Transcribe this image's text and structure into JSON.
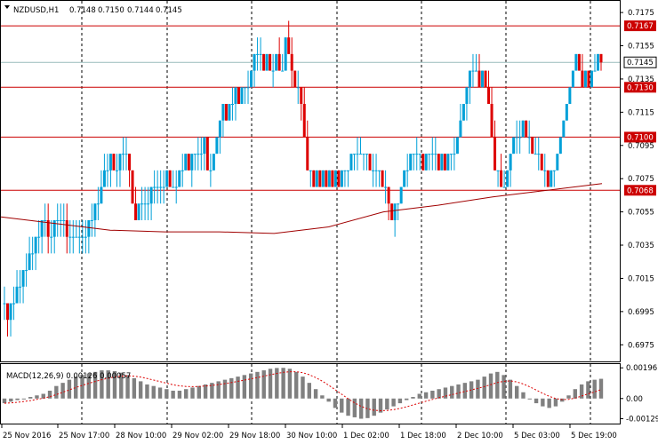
{
  "chart_data": {
    "type": "candlestick",
    "symbol_header": "NZDUSD,H1",
    "ohlc_header": [
      "0.7148",
      "0.7150",
      "0.7144",
      "0.7145"
    ],
    "price_axis": {
      "range": [
        0.6965,
        0.7182
      ],
      "ticks": [
        "0.7175",
        "0.7155",
        "0.7135",
        "0.7115",
        "0.7095",
        "0.7075",
        "0.7055",
        "0.7035",
        "0.7015",
        "0.6995",
        "0.6975"
      ]
    },
    "horizontal_levels": [
      {
        "label": "0.7167",
        "value": 0.7167,
        "color": "#cc0000"
      },
      {
        "label": "0.7130",
        "value": 0.713,
        "color": "#cc0000"
      },
      {
        "label": "0.7100",
        "value": 0.71,
        "color": "#cc0000"
      },
      {
        "label": "0.7068",
        "value": 0.7068,
        "color": "#cc0000"
      }
    ],
    "current_price": {
      "label": "0.7145",
      "value": 0.7145
    },
    "time_labels": [
      "25 Nov 2016",
      "25 Nov 17:00",
      "28 Nov 10:00",
      "29 Nov 02:00",
      "29 Nov 18:00",
      "30 Nov 10:00",
      "1 Dec 02:00",
      "1 Dec 18:00",
      "2 Dec 10:00",
      "5 Dec 03:00",
      "5 Dec 19:00"
    ],
    "candles": [
      [
        0.7,
        0.701,
        0.699,
        0.7
      ],
      [
        0.7,
        0.7,
        0.698,
        0.699
      ],
      [
        0.699,
        0.7,
        0.698,
        0.7
      ],
      [
        0.7,
        0.701,
        0.699,
        0.7
      ],
      [
        0.7,
        0.702,
        0.7,
        0.701
      ],
      [
        0.701,
        0.702,
        0.7,
        0.701
      ],
      [
        0.701,
        0.702,
        0.7,
        0.702
      ],
      [
        0.702,
        0.703,
        0.701,
        0.702
      ],
      [
        0.702,
        0.704,
        0.702,
        0.703
      ],
      [
        0.703,
        0.704,
        0.702,
        0.703
      ],
      [
        0.703,
        0.704,
        0.702,
        0.704
      ],
      [
        0.704,
        0.705,
        0.703,
        0.704
      ],
      [
        0.704,
        0.705,
        0.703,
        0.705
      ],
      [
        0.705,
        0.706,
        0.704,
        0.705
      ],
      [
        0.705,
        0.706,
        0.703,
        0.704
      ],
      [
        0.704,
        0.705,
        0.703,
        0.704
      ],
      [
        0.704,
        0.705,
        0.703,
        0.705
      ],
      [
        0.705,
        0.706,
        0.704,
        0.705
      ],
      [
        0.705,
        0.706,
        0.704,
        0.705
      ],
      [
        0.705,
        0.706,
        0.704,
        0.705
      ],
      [
        0.705,
        0.706,
        0.703,
        0.704
      ],
      [
        0.704,
        0.705,
        0.703,
        0.704
      ],
      [
        0.704,
        0.705,
        0.703,
        0.704
      ],
      [
        0.704,
        0.705,
        0.704,
        0.704
      ],
      [
        0.704,
        0.705,
        0.703,
        0.704
      ],
      [
        0.704,
        0.705,
        0.703,
        0.704
      ],
      [
        0.704,
        0.705,
        0.703,
        0.704
      ],
      [
        0.704,
        0.705,
        0.703,
        0.705
      ],
      [
        0.705,
        0.706,
        0.704,
        0.705
      ],
      [
        0.705,
        0.706,
        0.704,
        0.706
      ],
      [
        0.706,
        0.707,
        0.705,
        0.706
      ],
      [
        0.706,
        0.708,
        0.706,
        0.707
      ],
      [
        0.707,
        0.709,
        0.707,
        0.708
      ],
      [
        0.708,
        0.709,
        0.707,
        0.708
      ],
      [
        0.708,
        0.709,
        0.707,
        0.709
      ],
      [
        0.709,
        0.709,
        0.708,
        0.708
      ],
      [
        0.708,
        0.709,
        0.707,
        0.708
      ],
      [
        0.708,
        0.709,
        0.707,
        0.709
      ],
      [
        0.709,
        0.71,
        0.708,
        0.709
      ],
      [
        0.709,
        0.71,
        0.708,
        0.709
      ],
      [
        0.709,
        0.709,
        0.707,
        0.708
      ],
      [
        0.708,
        0.708,
        0.706,
        0.706
      ],
      [
        0.706,
        0.707,
        0.705,
        0.705
      ],
      [
        0.705,
        0.706,
        0.705,
        0.706
      ],
      [
        0.706,
        0.707,
        0.705,
        0.706
      ],
      [
        0.706,
        0.707,
        0.705,
        0.706
      ],
      [
        0.706,
        0.707,
        0.705,
        0.706
      ],
      [
        0.706,
        0.707,
        0.705,
        0.707
      ],
      [
        0.707,
        0.708,
        0.706,
        0.707
      ],
      [
        0.707,
        0.708,
        0.706,
        0.707
      ],
      [
        0.707,
        0.708,
        0.706,
        0.707
      ],
      [
        0.707,
        0.708,
        0.706,
        0.707
      ],
      [
        0.707,
        0.708,
        0.707,
        0.708
      ],
      [
        0.708,
        0.708,
        0.707,
        0.707
      ],
      [
        0.707,
        0.708,
        0.707,
        0.707
      ],
      [
        0.707,
        0.708,
        0.706,
        0.707
      ],
      [
        0.707,
        0.708,
        0.707,
        0.708
      ],
      [
        0.708,
        0.709,
        0.707,
        0.708
      ],
      [
        0.708,
        0.709,
        0.708,
        0.709
      ],
      [
        0.709,
        0.709,
        0.708,
        0.708
      ],
      [
        0.708,
        0.709,
        0.707,
        0.709
      ],
      [
        0.709,
        0.709,
        0.708,
        0.709
      ],
      [
        0.709,
        0.71,
        0.708,
        0.709
      ],
      [
        0.709,
        0.71,
        0.708,
        0.709
      ],
      [
        0.709,
        0.71,
        0.708,
        0.71
      ],
      [
        0.71,
        0.71,
        0.708,
        0.708
      ],
      [
        0.708,
        0.709,
        0.707,
        0.708
      ],
      [
        0.708,
        0.709,
        0.708,
        0.709
      ],
      [
        0.709,
        0.71,
        0.709,
        0.71
      ],
      [
        0.71,
        0.711,
        0.709,
        0.711
      ],
      [
        0.711,
        0.712,
        0.71,
        0.712
      ],
      [
        0.712,
        0.712,
        0.711,
        0.711
      ],
      [
        0.711,
        0.712,
        0.711,
        0.712
      ],
      [
        0.712,
        0.713,
        0.711,
        0.712
      ],
      [
        0.712,
        0.713,
        0.711,
        0.713
      ],
      [
        0.713,
        0.713,
        0.712,
        0.712
      ],
      [
        0.712,
        0.713,
        0.712,
        0.713
      ],
      [
        0.713,
        0.713,
        0.712,
        0.713
      ],
      [
        0.713,
        0.714,
        0.712,
        0.713
      ],
      [
        0.713,
        0.714,
        0.713,
        0.714
      ],
      [
        0.714,
        0.715,
        0.713,
        0.715
      ],
      [
        0.715,
        0.716,
        0.714,
        0.715
      ],
      [
        0.715,
        0.716,
        0.714,
        0.715
      ],
      [
        0.715,
        0.715,
        0.714,
        0.714
      ],
      [
        0.714,
        0.715,
        0.714,
        0.715
      ],
      [
        0.715,
        0.715,
        0.714,
        0.714
      ],
      [
        0.714,
        0.715,
        0.713,
        0.714
      ],
      [
        0.714,
        0.715,
        0.714,
        0.715
      ],
      [
        0.715,
        0.716,
        0.714,
        0.714
      ],
      [
        0.714,
        0.715,
        0.714,
        0.714
      ],
      [
        0.714,
        0.716,
        0.714,
        0.716
      ],
      [
        0.716,
        0.717,
        0.715,
        0.715
      ],
      [
        0.715,
        0.716,
        0.713,
        0.714
      ],
      [
        0.714,
        0.714,
        0.713,
        0.713
      ],
      [
        0.713,
        0.714,
        0.712,
        0.713
      ],
      [
        0.713,
        0.713,
        0.711,
        0.712
      ],
      [
        0.712,
        0.713,
        0.71,
        0.71
      ],
      [
        0.71,
        0.711,
        0.708,
        0.708
      ],
      [
        0.708,
        0.708,
        0.707,
        0.708
      ],
      [
        0.708,
        0.708,
        0.707,
        0.707
      ],
      [
        0.707,
        0.708,
        0.707,
        0.708
      ],
      [
        0.708,
        0.708,
        0.707,
        0.707
      ],
      [
        0.707,
        0.708,
        0.707,
        0.708
      ],
      [
        0.708,
        0.708,
        0.707,
        0.707
      ],
      [
        0.707,
        0.708,
        0.707,
        0.708
      ],
      [
        0.708,
        0.708,
        0.707,
        0.707
      ],
      [
        0.707,
        0.708,
        0.707,
        0.708
      ],
      [
        0.708,
        0.708,
        0.707,
        0.707
      ],
      [
        0.707,
        0.708,
        0.707,
        0.708
      ],
      [
        0.708,
        0.708,
        0.707,
        0.708
      ],
      [
        0.708,
        0.708,
        0.707,
        0.708
      ],
      [
        0.708,
        0.709,
        0.708,
        0.709
      ],
      [
        0.709,
        0.709,
        0.708,
        0.709
      ],
      [
        0.709,
        0.71,
        0.708,
        0.709
      ],
      [
        0.709,
        0.71,
        0.709,
        0.709
      ],
      [
        0.709,
        0.709,
        0.708,
        0.709
      ],
      [
        0.709,
        0.709,
        0.708,
        0.709
      ],
      [
        0.709,
        0.709,
        0.708,
        0.708
      ],
      [
        0.708,
        0.709,
        0.707,
        0.708
      ],
      [
        0.708,
        0.709,
        0.707,
        0.708
      ],
      [
        0.708,
        0.708,
        0.707,
        0.708
      ],
      [
        0.708,
        0.708,
        0.707,
        0.707
      ],
      [
        0.707,
        0.708,
        0.706,
        0.707
      ],
      [
        0.707,
        0.707,
        0.705,
        0.706
      ],
      [
        0.706,
        0.706,
        0.705,
        0.705
      ],
      [
        0.705,
        0.706,
        0.704,
        0.706
      ],
      [
        0.706,
        0.706,
        0.705,
        0.706
      ],
      [
        0.706,
        0.707,
        0.706,
        0.707
      ],
      [
        0.707,
        0.708,
        0.707,
        0.708
      ],
      [
        0.708,
        0.709,
        0.707,
        0.708
      ],
      [
        0.708,
        0.709,
        0.708,
        0.709
      ],
      [
        0.709,
        0.709,
        0.708,
        0.709
      ],
      [
        0.709,
        0.71,
        0.708,
        0.709
      ],
      [
        0.709,
        0.709,
        0.708,
        0.709
      ],
      [
        0.709,
        0.709,
        0.708,
        0.708
      ],
      [
        0.708,
        0.709,
        0.708,
        0.709
      ],
      [
        0.709,
        0.709,
        0.708,
        0.709
      ],
      [
        0.709,
        0.71,
        0.708,
        0.709
      ],
      [
        0.709,
        0.71,
        0.708,
        0.709
      ],
      [
        0.709,
        0.709,
        0.708,
        0.708
      ],
      [
        0.708,
        0.709,
        0.708,
        0.709
      ],
      [
        0.709,
        0.709,
        0.708,
        0.708
      ],
      [
        0.708,
        0.709,
        0.708,
        0.709
      ],
      [
        0.709,
        0.709,
        0.708,
        0.709
      ],
      [
        0.709,
        0.71,
        0.708,
        0.709
      ],
      [
        0.709,
        0.71,
        0.709,
        0.71
      ],
      [
        0.71,
        0.712,
        0.71,
        0.711
      ],
      [
        0.711,
        0.712,
        0.711,
        0.712
      ],
      [
        0.712,
        0.713,
        0.711,
        0.713
      ],
      [
        0.713,
        0.714,
        0.712,
        0.714
      ],
      [
        0.714,
        0.715,
        0.713,
        0.714
      ],
      [
        0.714,
        0.715,
        0.714,
        0.714
      ],
      [
        0.714,
        0.715,
        0.713,
        0.713
      ],
      [
        0.713,
        0.714,
        0.713,
        0.714
      ],
      [
        0.714,
        0.714,
        0.713,
        0.713
      ],
      [
        0.713,
        0.714,
        0.712,
        0.712
      ],
      [
        0.712,
        0.713,
        0.71,
        0.71
      ],
      [
        0.71,
        0.711,
        0.708,
        0.708
      ],
      [
        0.708,
        0.708,
        0.707,
        0.708
      ],
      [
        0.708,
        0.709,
        0.707,
        0.707
      ],
      [
        0.707,
        0.708,
        0.707,
        0.707
      ],
      [
        0.707,
        0.708,
        0.707,
        0.708
      ],
      [
        0.708,
        0.709,
        0.707,
        0.709
      ],
      [
        0.709,
        0.71,
        0.709,
        0.71
      ],
      [
        0.71,
        0.711,
        0.709,
        0.71
      ],
      [
        0.71,
        0.711,
        0.709,
        0.71
      ],
      [
        0.71,
        0.711,
        0.71,
        0.711
      ],
      [
        0.711,
        0.711,
        0.71,
        0.71
      ],
      [
        0.71,
        0.711,
        0.709,
        0.71
      ],
      [
        0.71,
        0.71,
        0.709,
        0.709
      ],
      [
        0.709,
        0.71,
        0.709,
        0.709
      ],
      [
        0.709,
        0.71,
        0.708,
        0.709
      ],
      [
        0.709,
        0.709,
        0.708,
        0.708
      ],
      [
        0.708,
        0.709,
        0.707,
        0.708
      ],
      [
        0.708,
        0.708,
        0.707,
        0.707
      ],
      [
        0.707,
        0.708,
        0.707,
        0.708
      ],
      [
        0.708,
        0.708,
        0.707,
        0.708
      ],
      [
        0.708,
        0.709,
        0.708,
        0.709
      ],
      [
        0.709,
        0.71,
        0.709,
        0.71
      ],
      [
        0.71,
        0.711,
        0.71,
        0.711
      ],
      [
        0.711,
        0.712,
        0.711,
        0.712
      ],
      [
        0.712,
        0.713,
        0.712,
        0.713
      ],
      [
        0.713,
        0.714,
        0.713,
        0.714
      ],
      [
        0.714,
        0.715,
        0.714,
        0.715
      ],
      [
        0.715,
        0.715,
        0.714,
        0.714
      ],
      [
        0.714,
        0.715,
        0.713,
        0.713
      ],
      [
        0.713,
        0.714,
        0.713,
        0.714
      ],
      [
        0.714,
        0.714,
        0.713,
        0.713
      ],
      [
        0.713,
        0.714,
        0.713,
        0.714
      ],
      [
        0.714,
        0.715,
        0.714,
        0.714
      ],
      [
        0.714,
        0.715,
        0.714,
        0.715
      ],
      [
        0.715,
        0.715,
        0.714,
        0.7145
      ]
    ],
    "moving_average": {
      "color": "#a00000",
      "values": [
        0.7052,
        0.7048,
        0.7044,
        0.7043,
        0.7043,
        0.7042,
        0.7046,
        0.7055,
        0.7059,
        0.7064,
        0.7068,
        0.7072
      ]
    },
    "macd": {
      "label": "MACD(12,26,9) 0.00126 0.00057",
      "ticks": [
        "0.00196",
        "0.00",
        "-0.00129"
      ],
      "range": [
        -0.0016,
        0.0022
      ],
      "histogram": [
        -0.0003,
        -0.0002,
        -0.0001,
        0.0,
        0.0001,
        0.0002,
        0.0003,
        0.0005,
        0.0008,
        0.001,
        0.0012,
        0.0014,
        0.0015,
        0.0016,
        0.0017,
        0.0018,
        0.0018,
        0.00175,
        0.00165,
        0.0015,
        0.0013,
        0.0011,
        0.0009,
        0.0008,
        0.0007,
        0.0006,
        0.0005,
        0.0005,
        0.0006,
        0.0007,
        0.0008,
        0.0009,
        0.001,
        0.0011,
        0.0012,
        0.0013,
        0.0014,
        0.0015,
        0.0016,
        0.0017,
        0.0018,
        0.0019,
        0.00195,
        0.00196,
        0.0019,
        0.0017,
        0.0014,
        0.001,
        0.0006,
        0.0002,
        -0.0002,
        -0.0006,
        -0.0009,
        -0.0011,
        -0.0012,
        -0.00129,
        -0.00125,
        -0.0011,
        -0.0009,
        -0.0007,
        -0.0005,
        -0.0003,
        -0.0001,
        0.0001,
        0.0003,
        0.0004,
        0.0005,
        0.0006,
        0.0007,
        0.0008,
        0.0009,
        0.001,
        0.0011,
        0.0012,
        0.0014,
        0.0016,
        0.0017,
        0.0015,
        0.0012,
        0.0008,
        0.0004,
        0.0,
        -0.0003,
        -0.0005,
        -0.0006,
        -0.0005,
        -0.0002,
        0.0002,
        0.0006,
        0.0009,
        0.0011,
        0.0012,
        0.00126
      ],
      "signal": [
        -0.0003,
        -0.00028,
        -0.00024,
        -0.00019,
        -0.00013,
        -6e-05,
        2e-05,
        0.00012,
        0.00025,
        0.0004,
        0.00055,
        0.0007,
        0.00084,
        0.00097,
        0.00109,
        0.0012,
        0.0013,
        0.00138,
        0.00143,
        0.00145,
        0.00143,
        0.00137,
        0.00128,
        0.00118,
        0.00108,
        0.00098,
        0.00088,
        0.00081,
        0.00077,
        0.00076,
        0.00077,
        0.0008,
        0.00084,
        0.00089,
        0.00095,
        0.00102,
        0.0011,
        0.00118,
        0.00126,
        0.00134,
        0.00143,
        0.00152,
        0.0016,
        0.00167,
        0.00171,
        0.00171,
        0.00165,
        0.00152,
        0.00134,
        0.00111,
        0.00085,
        0.00056,
        0.00027,
        -2e-05,
        -0.00028,
        -0.0005,
        -0.00066,
        -0.00075,
        -0.00078,
        -0.00076,
        -0.00071,
        -0.00063,
        -0.00053,
        -0.00041,
        -0.00029,
        -0.00017,
        -6e-05,
        5e-05,
        0.00015,
        0.00025,
        0.00035,
        0.00045,
        0.00055,
        0.00065,
        0.00076,
        0.00089,
        0.00102,
        0.0011,
        0.00112,
        0.00106,
        0.00093,
        0.00075,
        0.00054,
        0.00033,
        0.00014,
        0.0,
        -7e-05,
        -6e-05,
        3e-05,
        0.00016,
        0.0003,
        0.00042,
        0.00057
      ]
    }
  },
  "colors": {
    "bull": "#00a0d8",
    "bear": "#dd0000",
    "level": "#cc0000",
    "grid": "#000000",
    "macd_signal": "#dd0000",
    "macd_hist": "#808080"
  }
}
